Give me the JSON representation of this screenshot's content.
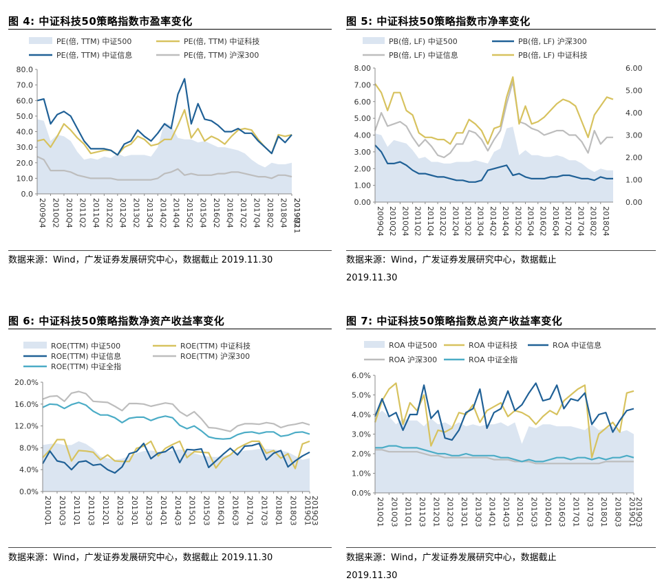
{
  "panels": [
    {
      "title": "图 4: 中证科技50策略指数市盈率变化",
      "source": "数据来源：Wind，广发证券发展研究中心，数据截止 2019.11.30"
    },
    {
      "title": "图 5: 中证科技50策略指数市净率变化",
      "source": "数据来源：Wind，广发证券发展研究中心，数据截止 2019.11.30"
    },
    {
      "title": "图 6: 中证科技50策略指数净资产收益率变化",
      "source": "数据来源：Wind，广发证券发展研究中心，数据截止 2019.11.30"
    },
    {
      "title": "图 7: 中证科技50策略指数总资产收益率变化",
      "source": "数据来源：Wind，广发证券发展研究中心，数据截止 2019.11.30"
    }
  ],
  "colors": {
    "area": "#dbe5f1",
    "dark_blue": "#1f6096",
    "gold": "#d7c25e",
    "gray": "#bdbdbd",
    "teal": "#4bacc6",
    "axis": "#888888",
    "tick_text": "#333333"
  },
  "chart_data": [
    {
      "type": "line",
      "legend": [
        {
          "name": "PE(倍, TTM) 中证500",
          "style": "area",
          "color": "#dbe5f1"
        },
        {
          "name": "PE(倍, TTM) 中证科技",
          "style": "line",
          "color": "#d7c25e"
        },
        {
          "name": "PE(倍, TTM) 中证信息",
          "style": "line",
          "color": "#1f6096"
        },
        {
          "name": "PE(倍, TTM) 沪深300",
          "style": "line",
          "color": "#bdbdbd"
        }
      ],
      "x_tick_labels": [
        "2009Q4",
        "2010Q2",
        "2010Q4",
        "2011Q2",
        "2011Q4",
        "2012Q2",
        "2012Q4",
        "2013Q2",
        "2013Q4",
        "2014Q2",
        "2014Q4",
        "2015Q2",
        "2015Q4",
        "2016Q2",
        "2016Q4",
        "2017Q2",
        "2017Q4",
        "2018Q2",
        "2018Q4",
        "2019Q2",
        "2019M11"
      ],
      "ylim": [
        0,
        80
      ],
      "y_ticks": [
        "0.0",
        "10.0",
        "20.0",
        "30.0",
        "40.0",
        "50.0",
        "60.0",
        "70.0",
        "80.0"
      ],
      "series": [
        {
          "name": "PE(倍, TTM) 中证500",
          "style": "area",
          "axis": "left",
          "values": [
            48,
            47,
            34,
            38,
            37,
            34,
            27,
            22,
            23,
            22,
            24,
            23,
            26,
            24,
            25,
            25,
            25,
            24,
            30,
            46,
            44,
            36,
            35,
            35,
            33,
            34,
            32,
            30,
            30,
            29,
            28,
            26,
            22,
            19,
            17,
            20,
            19,
            19,
            20
          ]
        },
        {
          "name": "PE(倍, TTM) 中证科技",
          "style": "line",
          "axis": "left",
          "values": [
            34,
            35,
            30,
            37,
            45,
            41,
            36,
            32,
            26,
            27,
            28,
            28,
            25,
            30,
            32,
            37,
            35,
            31,
            32,
            35,
            35,
            44,
            54,
            36,
            42,
            34,
            37,
            35,
            32,
            37,
            41,
            42,
            41,
            35,
            30,
            26,
            38,
            37,
            38
          ]
        },
        {
          "name": "PE(倍, TTM) 中证信息",
          "style": "line",
          "axis": "left",
          "values": [
            60,
            61,
            45,
            51,
            53,
            50,
            42,
            34,
            29,
            29,
            29,
            28,
            25,
            32,
            34,
            41,
            37,
            34,
            39,
            45,
            42,
            64,
            74,
            45,
            58,
            48,
            47,
            44,
            40,
            40,
            42,
            39,
            39,
            34,
            30,
            26,
            37,
            33,
            38
          ]
        },
        {
          "name": "PE(倍, TTM) 沪深300",
          "style": "line",
          "axis": "left",
          "values": [
            24,
            22,
            15,
            15,
            15,
            14,
            12,
            11,
            10,
            10,
            10,
            10,
            9,
            9,
            9,
            9,
            9,
            9,
            10,
            13,
            14,
            16,
            12,
            13,
            12,
            12,
            12,
            13,
            13,
            14,
            14,
            13,
            12,
            11,
            11,
            10,
            12,
            12,
            11
          ]
        }
      ]
    },
    {
      "type": "line",
      "legend": [
        {
          "name": "PB(倍, LF) 中证500",
          "style": "area",
          "color": "#dbe5f1"
        },
        {
          "name": "PB(倍, LF) 沪深300",
          "style": "line",
          "color": "#1f6096"
        },
        {
          "name": "PB(倍, LF) 中证信息",
          "style": "line",
          "color": "#bdbdbd"
        },
        {
          "name": "PB(倍, LF) 中证科技",
          "style": "line",
          "color": "#d7c25e"
        }
      ],
      "x_tick_labels": [
        "2009Q4",
        "2010Q2",
        "2010Q4",
        "2011Q2",
        "2011Q4",
        "2012Q2",
        "2012Q4",
        "2013Q2",
        "2013Q4",
        "2014Q2",
        "2014Q4",
        "2015Q2",
        "2015Q4",
        "2016Q2",
        "2016Q4",
        "2017Q2",
        "2017Q4",
        "2018Q2",
        "2018Q4"
      ],
      "ylim_left": [
        0,
        8
      ],
      "ylim_right": [
        0,
        6
      ],
      "y_ticks_left": [
        "0.00",
        "1.00",
        "2.00",
        "3.00",
        "4.00",
        "5.00",
        "6.00",
        "7.00",
        "8.00"
      ],
      "y_ticks_right": [
        "0.00",
        "1.00",
        "2.00",
        "3.00",
        "4.00",
        "5.00",
        "6.00"
      ],
      "series": [
        {
          "name": "PB(倍, LF) 中证500",
          "style": "area",
          "axis": "left",
          "values": [
            4.1,
            4.0,
            3.3,
            3.7,
            3.6,
            3.5,
            3.1,
            2.6,
            2.7,
            2.4,
            2.4,
            2.3,
            2.3,
            2.4,
            2.4,
            2.4,
            2.5,
            2.4,
            2.3,
            3.0,
            3.2,
            4.4,
            4.5,
            2.8,
            3.1,
            2.8,
            2.8,
            2.7,
            2.7,
            2.8,
            2.7,
            2.5,
            2.5,
            2.3,
            2.0,
            1.8,
            2.0,
            1.9,
            1.9
          ]
        },
        {
          "name": "PB(倍, LF) 沪深300",
          "style": "line",
          "axis": "left",
          "values": [
            3.4,
            3.0,
            2.3,
            2.3,
            2.4,
            2.2,
            1.9,
            1.7,
            1.7,
            1.6,
            1.5,
            1.5,
            1.4,
            1.3,
            1.3,
            1.2,
            1.2,
            1.3,
            1.9,
            2.0,
            2.1,
            2.2,
            1.6,
            1.7,
            1.5,
            1.4,
            1.4,
            1.4,
            1.5,
            1.5,
            1.6,
            1.6,
            1.5,
            1.4,
            1.4,
            1.3,
            1.5,
            1.4,
            1.4
          ]
        },
        {
          "name": "PB(倍, LF) 中证信息",
          "style": "line",
          "axis": "right",
          "values": [
            3.2,
            4.0,
            3.4,
            3.5,
            3.6,
            3.4,
            2.9,
            2.5,
            2.8,
            2.5,
            2.1,
            2.0,
            2.2,
            2.6,
            2.6,
            3.2,
            3.1,
            2.8,
            2.3,
            2.8,
            3.2,
            4.4,
            5.4,
            3.6,
            3.5,
            3.3,
            3.2,
            3.0,
            3.1,
            3.2,
            3.2,
            3.0,
            3.0,
            2.7,
            2.2,
            3.2,
            2.6,
            2.9,
            2.9
          ]
        },
        {
          "name": "PB(倍, LF) 中证科技",
          "style": "line",
          "axis": "right",
          "values": [
            5.3,
            4.9,
            4.1,
            4.9,
            4.9,
            4.1,
            3.9,
            3.1,
            2.9,
            2.9,
            2.8,
            2.8,
            2.6,
            3.1,
            3.1,
            3.7,
            3.5,
            3.2,
            2.6,
            3.3,
            3.4,
            4.7,
            5.6,
            3.5,
            4.3,
            3.5,
            3.6,
            3.8,
            4.1,
            4.4,
            4.6,
            4.5,
            4.3,
            3.6,
            2.9,
            3.9,
            4.3,
            4.7,
            4.6
          ]
        }
      ]
    },
    {
      "type": "line",
      "legend": [
        {
          "name": "ROE(TTM) 中证500",
          "style": "area",
          "color": "#dbe5f1"
        },
        {
          "name": "ROE(TTM) 中证科技",
          "style": "line",
          "color": "#d7c25e"
        },
        {
          "name": "ROE(TTM) 中证信息",
          "style": "line",
          "color": "#1f6096"
        },
        {
          "name": "ROE(TTM) 沪深300",
          "style": "line",
          "color": "#bdbdbd"
        },
        {
          "name": "ROE(TTM) 中证全指",
          "style": "line",
          "color": "#4bacc6"
        }
      ],
      "x_tick_labels": [
        "2010Q1",
        "2010Q3",
        "2011Q1",
        "2011Q3",
        "2012Q1",
        "2012Q3",
        "2013Q1",
        "2013Q3",
        "2014Q1",
        "2014Q3",
        "2015Q1",
        "2015Q3",
        "2016Q1",
        "2016Q3",
        "2017Q1",
        "2017Q3",
        "2018Q1",
        "2018Q3",
        "2019Q1",
        "2019Q3"
      ],
      "ylim": [
        0,
        20
      ],
      "y_ticks": [
        "0.0%",
        "4.0%",
        "8.0%",
        "12.0%",
        "16.0%",
        "20.0%"
      ],
      "series": [
        {
          "name": "ROE(TTM) 中证500",
          "style": "area",
          "axis": "left",
          "values": [
            8.5,
            8.7,
            8.8,
            8.5,
            8.5,
            9.2,
            8.7,
            7.8,
            6.4,
            6.1,
            5.8,
            6.0,
            6.5,
            7.0,
            7.4,
            7.5,
            7.3,
            7.3,
            7.5,
            7.7,
            7.6,
            7.0,
            6.6,
            6.4,
            6.3,
            6.5,
            6.8,
            7.2,
            7.5,
            7.6,
            7.8,
            7.8,
            7.7,
            7.5,
            7.2,
            6.5,
            5.8,
            6.1
          ]
        },
        {
          "name": "ROE(TTM) 中证科技",
          "style": "line",
          "axis": "left",
          "values": [
            6.2,
            7.6,
            9.5,
            9.5,
            5.6,
            7.5,
            7.4,
            7.2,
            5.8,
            6.7,
            5.6,
            5.5,
            5.5,
            7.9,
            8.3,
            9.2,
            6.5,
            7.9,
            8.6,
            9.2,
            6.2,
            7.3,
            7.2,
            7.1,
            4.3,
            6.0,
            6.7,
            7.9,
            8.6,
            9.2,
            9.2,
            7.0,
            7.5,
            6.1,
            6.9,
            4.2,
            8.7,
            9.2
          ]
        },
        {
          "name": "ROE(TTM) 中证信息",
          "style": "line",
          "axis": "left",
          "values": [
            5.1,
            7.4,
            5.6,
            5.3,
            4.0,
            5.4,
            5.6,
            4.8,
            5.0,
            4.0,
            3.4,
            4.5,
            6.9,
            7.3,
            8.8,
            6.0,
            7.0,
            7.3,
            8.2,
            5.3,
            7.7,
            7.6,
            7.8,
            4.4,
            5.6,
            6.8,
            7.9,
            6.7,
            8.3,
            8.4,
            8.8,
            5.8,
            7.0,
            7.5,
            4.5,
            5.6,
            6.5,
            7.2
          ]
        },
        {
          "name": "ROE(TTM) 沪深300",
          "style": "line",
          "axis": "left",
          "values": [
            16.9,
            17.4,
            17.5,
            16.5,
            18.0,
            18.3,
            17.9,
            16.5,
            16.4,
            16.3,
            15.6,
            14.8,
            16.1,
            16.1,
            16.0,
            15.6,
            15.9,
            16.2,
            16.0,
            14.6,
            13.8,
            14.6,
            13.3,
            11.7,
            11.6,
            11.3,
            11.0,
            12.0,
            12.4,
            12.4,
            12.3,
            12.6,
            12.4,
            11.7,
            12.1,
            12.3,
            12.6,
            12.2
          ]
        },
        {
          "name": "ROE(TTM) 中证全指",
          "style": "line",
          "axis": "left",
          "values": [
            15.4,
            16.0,
            15.9,
            15.2,
            15.9,
            16.3,
            15.8,
            14.7,
            14.0,
            14.0,
            13.5,
            12.6,
            13.4,
            13.6,
            13.6,
            13.0,
            13.5,
            13.8,
            13.5,
            12.1,
            11.5,
            12.0,
            11.1,
            10.0,
            9.7,
            9.6,
            9.7,
            10.4,
            10.8,
            10.9,
            10.6,
            10.9,
            10.9,
            10.1,
            10.3,
            10.8,
            10.9,
            10.5
          ]
        }
      ]
    },
    {
      "type": "line",
      "legend": [
        {
          "name": "ROA 中证500",
          "style": "area",
          "color": "#dbe5f1"
        },
        {
          "name": "ROA 中证科技",
          "style": "line",
          "color": "#d7c25e"
        },
        {
          "name": "ROA 中证信息",
          "style": "line",
          "color": "#1f6096"
        },
        {
          "name": "ROA 沪深300",
          "style": "line",
          "color": "#bdbdbd"
        },
        {
          "name": "ROA 中证全指",
          "style": "line",
          "color": "#4bacc6"
        }
      ],
      "x_tick_labels": [
        "2010Q1",
        "2010Q3",
        "2011Q1",
        "2011Q3",
        "2012Q1",
        "2012Q3",
        "2013Q1",
        "2013Q3",
        "2014Q1",
        "2014Q3",
        "2015Q1",
        "2015Q3",
        "2016Q1",
        "2016Q3",
        "2017Q1",
        "2017Q3",
        "2018Q1",
        "2018Q3",
        "2019Q1",
        "2019Q3"
      ],
      "ylim": [
        0,
        6
      ],
      "y_ticks": [
        "0.0%",
        "1.0%",
        "2.0%",
        "3.0%",
        "4.0%",
        "5.0%",
        "6.0%"
      ],
      "series": [
        {
          "name": "ROA 中证500",
          "style": "area",
          "axis": "left",
          "values": [
            3.9,
            4.2,
            3.9,
            3.5,
            3.8,
            3.7,
            3.7,
            3.4,
            3.8,
            3.5,
            3.6,
            3.4,
            3.6,
            3.4,
            3.5,
            3.4,
            3.5,
            3.5,
            3.6,
            3.4,
            3.6,
            2.5,
            3.4,
            3.3,
            3.5,
            3.5,
            3.4,
            3.4,
            3.4,
            3.3,
            3.2,
            3.5,
            3.2,
            3.3,
            3.4,
            3.1,
            3.2,
            3.0
          ]
        },
        {
          "name": "ROA 中证科技",
          "style": "line",
          "axis": "left",
          "values": [
            3.6,
            4.7,
            5.3,
            5.6,
            3.5,
            4.6,
            4.2,
            5.0,
            2.4,
            3.2,
            3.1,
            3.3,
            4.1,
            4.0,
            4.5,
            3.6,
            4.2,
            4.4,
            4.6,
            3.9,
            4.2,
            4.1,
            3.9,
            3.5,
            3.9,
            4.2,
            4.0,
            4.7,
            5.0,
            5.3,
            5.5,
            1.8,
            3.0,
            3.3,
            3.6,
            3.1,
            5.1,
            5.2
          ]
        },
        {
          "name": "ROA 中证信息",
          "style": "line",
          "axis": "left",
          "values": [
            3.9,
            4.8,
            3.9,
            4.1,
            3.2,
            4.0,
            4.0,
            5.5,
            3.8,
            4.2,
            2.8,
            2.7,
            3.2,
            4.1,
            4.3,
            5.3,
            3.3,
            4.1,
            4.3,
            5.2,
            4.2,
            4.5,
            5.1,
            5.6,
            4.7,
            4.8,
            5.5,
            4.3,
            4.8,
            4.7,
            5.1,
            3.5,
            4.0,
            4.1,
            3.1,
            3.7,
            4.2,
            4.3
          ]
        },
        {
          "name": "ROA 沪深300",
          "style": "line",
          "axis": "left",
          "values": [
            2.2,
            2.2,
            2.1,
            2.1,
            2.1,
            2.1,
            2.1,
            2.0,
            1.9,
            1.9,
            1.8,
            1.8,
            1.8,
            1.8,
            1.8,
            1.8,
            1.8,
            1.7,
            1.7,
            1.7,
            1.6,
            1.6,
            1.6,
            1.5,
            1.5,
            1.5,
            1.5,
            1.5,
            1.5,
            1.5,
            1.5,
            1.5,
            1.5,
            1.6,
            1.6,
            1.6,
            1.6,
            1.6
          ]
        },
        {
          "name": "ROA 中证全指",
          "style": "line",
          "axis": "left",
          "values": [
            2.3,
            2.3,
            2.4,
            2.4,
            2.3,
            2.3,
            2.3,
            2.2,
            2.1,
            2.0,
            2.0,
            1.9,
            1.9,
            2.0,
            1.9,
            1.9,
            1.9,
            1.9,
            1.8,
            1.8,
            1.7,
            1.6,
            1.7,
            1.6,
            1.6,
            1.7,
            1.8,
            1.8,
            1.7,
            1.8,
            1.8,
            1.7,
            1.8,
            1.7,
            1.8,
            1.8,
            1.9,
            1.8
          ]
        }
      ]
    }
  ]
}
